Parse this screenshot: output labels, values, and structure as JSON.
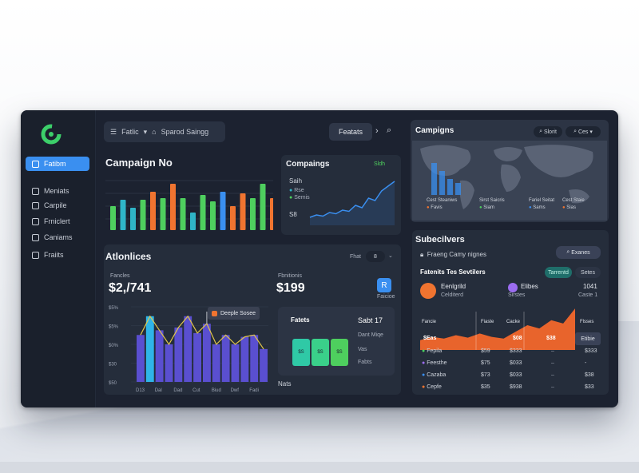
{
  "sidebar": {
    "items": [
      {
        "label": "Fatibm",
        "active": true
      },
      {
        "label": "Meniats"
      },
      {
        "label": "Carpile"
      },
      {
        "label": "Frniclert"
      },
      {
        "label": "Caniams"
      },
      {
        "label": "Fraiits"
      }
    ]
  },
  "topbar": {
    "search_label": "Fatlic",
    "breadcrumb": "Sparod Saingg",
    "features_label": "Featats"
  },
  "campaign_panel": {
    "title": "Campaign No",
    "bars": [
      {
        "value": 30,
        "color": "#4ecf5e"
      },
      {
        "value": 38,
        "color": "#2fb5c7"
      },
      {
        "value": 28,
        "color": "#2fb5c7"
      },
      {
        "value": 38,
        "color": "#4ecf5e"
      },
      {
        "value": 48,
        "color": "#f07430"
      },
      {
        "value": 40,
        "color": "#4ecf5e"
      },
      {
        "value": 58,
        "color": "#f07430"
      },
      {
        "value": 40,
        "color": "#4ecf5e"
      },
      {
        "value": 22,
        "color": "#2fb5c7"
      },
      {
        "value": 44,
        "color": "#4ecf5e"
      },
      {
        "value": 36,
        "color": "#4ecf5e"
      },
      {
        "value": 48,
        "color": "#3a8ff0"
      },
      {
        "value": 30,
        "color": "#f07430"
      },
      {
        "value": 46,
        "color": "#f07430"
      },
      {
        "value": 40,
        "color": "#4ecf5e"
      },
      {
        "value": 58,
        "color": "#4ecf5e"
      },
      {
        "value": 40,
        "color": "#f07430"
      }
    ]
  },
  "compaings_panel": {
    "title": "Compaings",
    "tag": "Sldh",
    "legend": [
      "Rse",
      "Semis"
    ],
    "bottom_label": "S8",
    "line": [
      4,
      6,
      5,
      8,
      7,
      10,
      9,
      14,
      12,
      20,
      18,
      26,
      30,
      34
    ]
  },
  "map_panel": {
    "title": "Campigns",
    "btn1": "Slorit",
    "btn2": "Ces",
    "locations": [
      {
        "name": "Cest Steaniws",
        "sub": "Favis",
        "color": "#f07430"
      },
      {
        "name": "Sirst Saicris",
        "sub": "Siam",
        "color": "#4ecf5e"
      },
      {
        "name": "Fariel Seitat",
        "sub": "Sams",
        "color": "#3a8ff0"
      },
      {
        "name": "Cest Staie",
        "sub": "Sias",
        "color": "#f07430"
      }
    ],
    "bars": [
      40,
      30,
      20,
      15
    ]
  },
  "audiences_panel": {
    "title": "Atlonlices",
    "control_label": "Fhat",
    "control_value": "8",
    "metric1_label": "Fancles",
    "metric1_value": "$2,/741",
    "metric2_label": "Fbnitionis",
    "metric2_value": "$199",
    "badge_label": "Faicioe",
    "tooltip": "Deeple Sosee",
    "y_ticks": [
      "$5%",
      "$5%",
      "$0%",
      "$30",
      "$50"
    ],
    "x_ticks": [
      "D13",
      "Dal",
      "Dad",
      "Cut",
      "Biud",
      "Dwf",
      "Fadi"
    ],
    "area_bars": [
      50,
      70,
      55,
      40,
      58,
      70,
      52,
      62,
      40,
      50,
      40,
      48,
      50,
      35
    ],
    "highlight_index": 1,
    "subpanel": {
      "title": "Fatets",
      "subtitle": "Sabt 17",
      "rows": [
        "Dant Miqe",
        "Vas",
        "Fabts"
      ],
      "tile_labels": [
        "$S",
        "$S",
        "$S"
      ]
    },
    "footer_label": "Nats"
  },
  "subscribers_panel": {
    "title": "Subecilvers",
    "subtitle": "Fraeng Camy nignes",
    "search_btn": "Exanes",
    "sub_header": "Fatenits Tes Sevtilers",
    "pill1": "Tarrentd",
    "pill2": "Setes",
    "row1_name": "Eenlgrild",
    "row1_sub": "Celditerd",
    "row2_name": "Elibes",
    "row2_sub": "Sirstes",
    "right1": "1041",
    "right2": "Caste 1",
    "chart_labels": [
      "Fancie",
      "Fiaste",
      "Cacke",
      "Flsses"
    ],
    "chart_value_labels": [
      "$Eas",
      "$08",
      "$38"
    ],
    "button_label": "Etibie",
    "table": [
      {
        "name": "Fepila",
        "c1": "$59",
        "c2": "$333",
        "c3": "$333",
        "color": "#4ecf5e"
      },
      {
        "name": "Feesthe",
        "c1": "$75",
        "c2": "$033",
        "c3": "-",
        "color": "#9b6cf0"
      },
      {
        "name": "Cazaba",
        "c1": "$73",
        "c2": "$033",
        "c3": "$38",
        "color": "#3a8ff0"
      },
      {
        "name": "Cepfe",
        "c1": "$35",
        "c2": "$938",
        "c3": "$33",
        "color": "#f07430"
      }
    ],
    "area": [
      6,
      10,
      8,
      12,
      9,
      14,
      10,
      8,
      16,
      24,
      20,
      30,
      26,
      44
    ]
  }
}
